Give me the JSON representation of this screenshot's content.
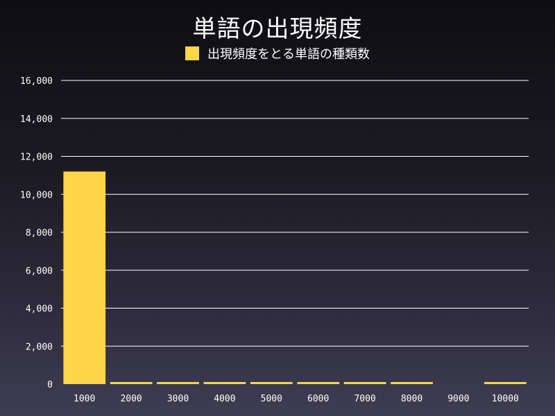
{
  "chart_data": {
    "type": "bar",
    "title": "単語の出現頻度",
    "xlabel": "",
    "ylabel": "",
    "categories": [
      "1000",
      "2000",
      "3000",
      "4000",
      "5000",
      "6000",
      "7000",
      "8000",
      "9000",
      "10000"
    ],
    "series": [
      {
        "name": "出現頻度をとる単語の種類数",
        "color": "#ffd54a",
        "values": [
          11200,
          50,
          40,
          35,
          30,
          30,
          30,
          30,
          0,
          40
        ]
      }
    ],
    "ylim": [
      0,
      16000
    ],
    "yticks": [
      0,
      2000,
      4000,
      6000,
      8000,
      10000,
      12000,
      14000,
      16000
    ],
    "ytick_labels": [
      "0",
      "2,000",
      "4,000",
      "6,000",
      "8,000",
      "10,000",
      "12,000",
      "14,000",
      "16,000"
    ],
    "grid": true,
    "legend_position": "top-center"
  }
}
